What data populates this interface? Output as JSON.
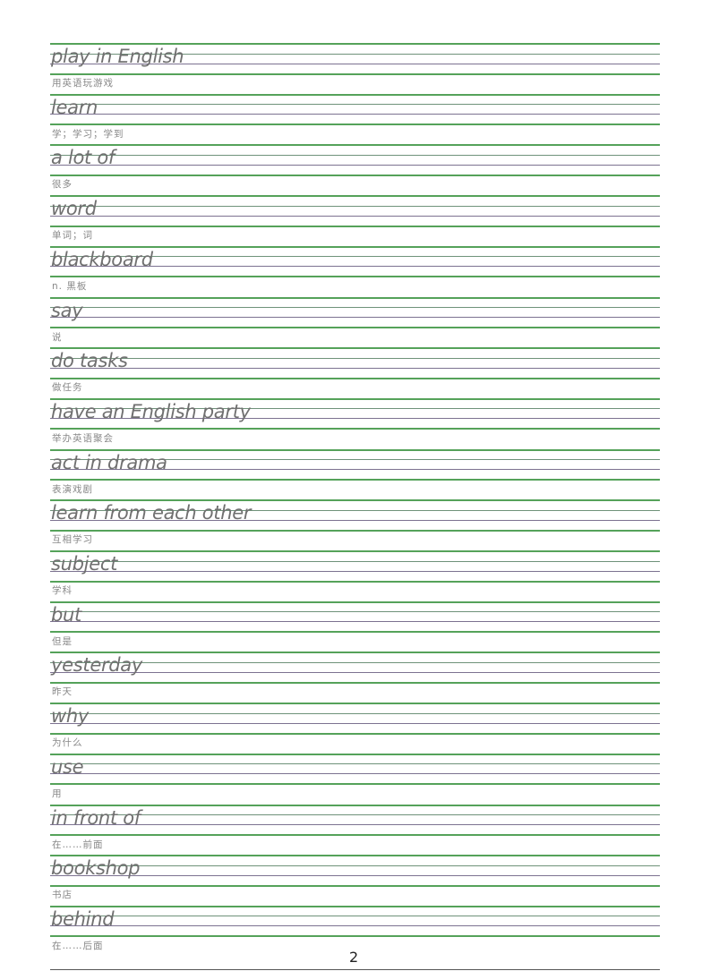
{
  "entries": [
    {
      "english": "play in English",
      "chinese": "用英语玩游戏"
    },
    {
      "english": "learn",
      "chinese": "学；学习；学到"
    },
    {
      "english": "a lot of",
      "chinese": "很多"
    },
    {
      "english": "word",
      "chinese": "单词；词"
    },
    {
      "english": "blackboard",
      "chinese": " n. 黑板"
    },
    {
      "english": "say",
      "chinese": "说"
    },
    {
      "english": "do tasks",
      "chinese": "做任务"
    },
    {
      "english": "have an English party",
      "chinese": "举办英语聚会"
    },
    {
      "english": "act in drama",
      "chinese": "表演戏剧"
    },
    {
      "english": "learn from each other",
      "chinese": "互相学习"
    },
    {
      "english": "subject",
      "chinese": "学科"
    },
    {
      "english": "but",
      "chinese": "但是"
    },
    {
      "english": "yesterday",
      "chinese": "昨天"
    },
    {
      "english": "why",
      "chinese": "为什么"
    },
    {
      "english": "use",
      "chinese": "用"
    },
    {
      "english": "in front of",
      "chinese": "在……前面"
    },
    {
      "english": "bookshop",
      "chinese": "书店"
    },
    {
      "english": "behind",
      "chinese": "在……后面"
    }
  ],
  "page_number": "2",
  "colors": {
    "guide_green": "#55a25a",
    "guide_purple": "#7c7290",
    "text": "#707070"
  }
}
